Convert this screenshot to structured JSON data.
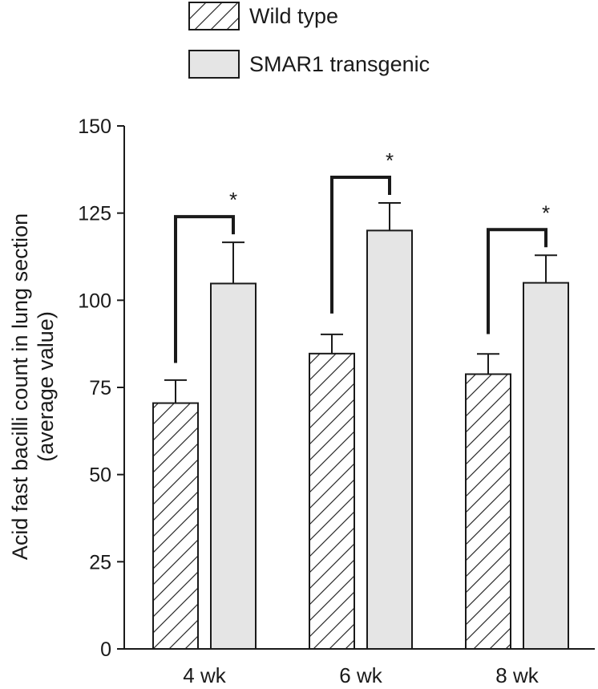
{
  "chart_data": {
    "type": "bar",
    "categories": [
      "4 wk",
      "6 wk",
      "8 wk"
    ],
    "series": [
      {
        "name": "Wild type",
        "values": [
          70.5,
          84.7,
          78.8
        ],
        "errors": [
          6.6,
          5.5,
          5.8
        ],
        "pattern": "hatched"
      },
      {
        "name": "SMAR1 transgenic",
        "values": [
          104.8,
          120.0,
          105.0
        ],
        "errors": [
          11.8,
          7.9,
          7.9
        ],
        "fill": "#e5e5e5"
      }
    ],
    "significance": [
      "*",
      "*",
      "*"
    ],
    "ylabel_lines": [
      "Acid fast bacilli count in lung section",
      "(average value)"
    ],
    "ylim": [
      0,
      150
    ],
    "yticks": [
      0,
      25,
      50,
      75,
      100,
      125,
      150
    ],
    "legend_position": "top",
    "grid": false,
    "colors": {
      "axis": "#1a1a1a",
      "transgenic_fill": "#e5e5e5",
      "wild_fill": "#ffffff"
    }
  }
}
